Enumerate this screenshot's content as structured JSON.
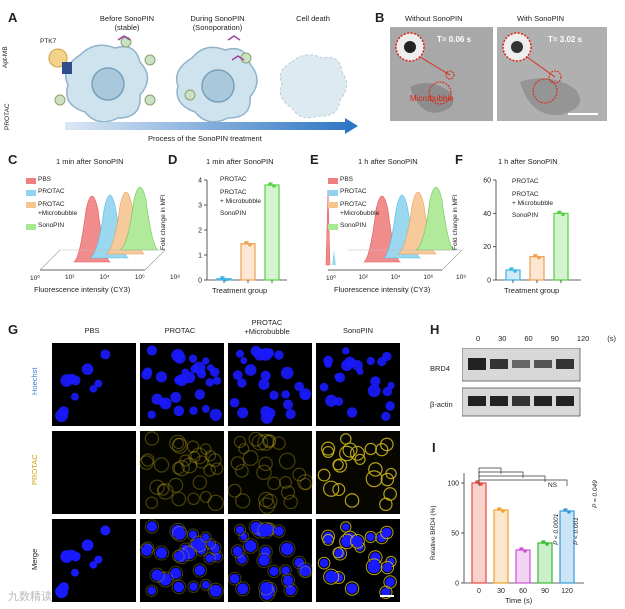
{
  "panels": {
    "A": {
      "letter": "A",
      "stage1": "Before SonoPIN\n(stable)",
      "stage2": "During SonoPIN\n(Sonoporation)",
      "stage3": "Cell death",
      "aptmb": "Apt-MB",
      "ptk7": "PTK7",
      "protac": "PROTAC",
      "arrow_label": "Process of the SonoPIN treatment"
    },
    "B": {
      "letter": "B",
      "without": "Without SonoPIN",
      "with": "With SonoPIN",
      "t1": "T= 0.06 s",
      "t2": "T= 3.02 s",
      "microbubble": "Microbubble"
    },
    "C": {
      "letter": "C",
      "title": "1 min after SonoPIN",
      "legend": [
        "PBS",
        "PROTAC",
        "PROTAC\n+Microbubble",
        "SonoPIN"
      ],
      "xlabel": "Fluorescence intensity (CY3)",
      "xticks": [
        "10⁰",
        "10²",
        "10⁴",
        "10⁶",
        "10⁸"
      ]
    },
    "D": {
      "letter": "D",
      "title": "1 min after SonoPIN",
      "ylabel": "Fold change in MFI",
      "xlabel": "Treatment group",
      "legend": [
        "PROTAC",
        "PROTAC\n+ Microbubble",
        "SonoPIN"
      ],
      "yticks": [
        "0",
        "1",
        "2",
        "3",
        "4"
      ]
    },
    "E": {
      "letter": "E",
      "title": "1 h after SonoPIN",
      "legend": [
        "PBS",
        "PROTAC",
        "PROTAC\n+Microbubble",
        "SonoPIN"
      ],
      "xlabel": "Fluorescence intensity (CY3)",
      "xticks": [
        "10⁰",
        "10²",
        "10⁴",
        "10⁶",
        "10⁸"
      ]
    },
    "F": {
      "letter": "F",
      "title": "1 h after SonoPIN",
      "ylabel": "Fold change in MFI",
      "xlabel": "Treatment group",
      "legend": [
        "PROTAC",
        "PROTAC\n+ Microbubble",
        "SonoPIN"
      ],
      "yticks": [
        "0",
        "20",
        "40",
        "60"
      ]
    },
    "G": {
      "letter": "G",
      "cols": [
        "PBS",
        "PROTAC",
        "PROTAC\n+Microbubble",
        "SonoPIN"
      ],
      "rows": [
        "Hoechst",
        "PROTAC",
        "Merge"
      ]
    },
    "H": {
      "letter": "H",
      "times": [
        "0",
        "30",
        "60",
        "90",
        "120",
        "(s)"
      ],
      "rows": [
        "BRD4",
        "β-actin"
      ]
    },
    "I": {
      "letter": "I",
      "ylabel": "Relative BRD4 (%)",
      "xlabel": "Time (s)",
      "xticks": [
        "0",
        "30",
        "60",
        "90",
        "120"
      ],
      "yticks": [
        "0",
        "50",
        "100"
      ],
      "stats": [
        "NS",
        "P < 0.0001",
        "P < 0.001",
        "P = 0.049"
      ]
    }
  },
  "watermark": "九数精读",
  "chart_data": [
    {
      "panel": "D",
      "type": "bar",
      "categories": [
        "PROTAC",
        "PROTAC + Microbubble",
        "SonoPIN"
      ],
      "values": [
        0.05,
        1.45,
        3.8
      ],
      "ylim": [
        0,
        4
      ],
      "colors": [
        "#3fb5e5",
        "#f0a050",
        "#55d040"
      ]
    },
    {
      "panel": "F",
      "type": "bar",
      "categories": [
        "PROTAC",
        "PROTAC + Microbubble",
        "SonoPIN"
      ],
      "values": [
        6,
        14,
        40
      ],
      "ylim": [
        0,
        60
      ],
      "colors": [
        "#3fb5e5",
        "#f0a050",
        "#55d040"
      ]
    },
    {
      "panel": "I",
      "type": "bar",
      "categories": [
        "0",
        "30",
        "60",
        "90",
        "120"
      ],
      "values": [
        100,
        73,
        33,
        40,
        72
      ],
      "ylim": [
        0,
        110
      ],
      "colors": [
        "#e74c3c",
        "#f0a030",
        "#d050d0",
        "#33bb33",
        "#3399dd"
      ]
    }
  ]
}
